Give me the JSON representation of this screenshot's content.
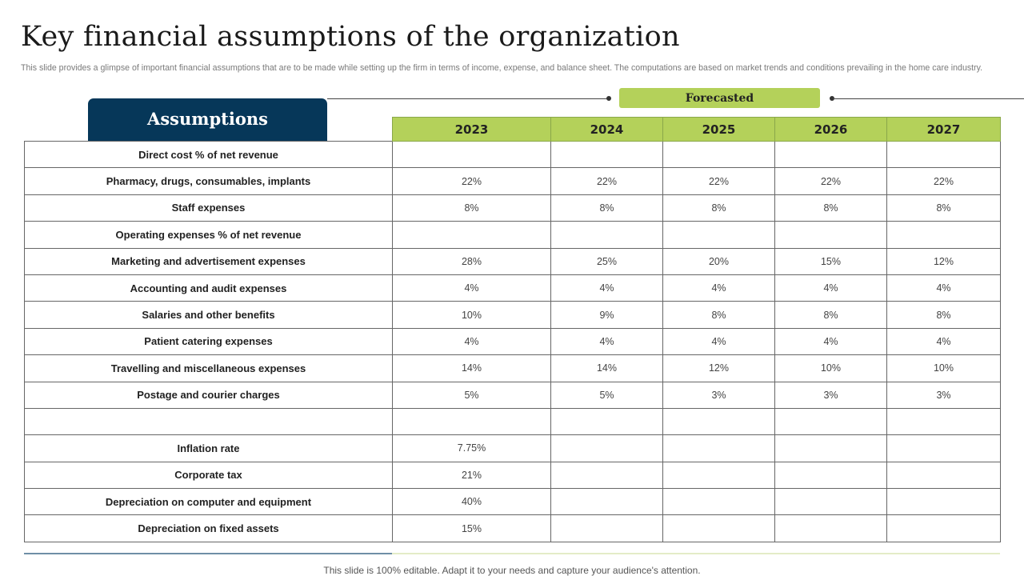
{
  "title": "Key financial assumptions of the organization",
  "subtitle": "This slide provides a glimpse of important financial assumptions that are to be made while setting up the firm in terms of income, expense, and balance sheet. The computations are based on market trends and conditions prevailing in the home care industry.",
  "assumptions_tab": "Assumptions",
  "forecast_label": "Forecasted",
  "years": [
    "2023",
    "2024",
    "2025",
    "2026",
    "2027"
  ],
  "rows": [
    {
      "label": "Direct cost % of net revenue",
      "values": [
        "",
        "",
        "",
        "",
        ""
      ]
    },
    {
      "label": "Pharmacy, drugs, consumables, implants",
      "values": [
        "22%",
        "22%",
        "22%",
        "22%",
        "22%"
      ]
    },
    {
      "label": "Staff expenses",
      "values": [
        "8%",
        "8%",
        "8%",
        "8%",
        "8%"
      ]
    },
    {
      "label": "Operating expenses % of net revenue",
      "values": [
        "",
        "",
        "",
        "",
        ""
      ]
    },
    {
      "label": "Marketing and advertisement expenses",
      "values": [
        "28%",
        "25%",
        "20%",
        "15%",
        "12%"
      ]
    },
    {
      "label": "Accounting and audit expenses",
      "values": [
        "4%",
        "4%",
        "4%",
        "4%",
        "4%"
      ]
    },
    {
      "label": "Salaries and other benefits",
      "values": [
        "10%",
        "9%",
        "8%",
        "8%",
        "8%"
      ]
    },
    {
      "label": "Patient catering expenses",
      "values": [
        "4%",
        "4%",
        "4%",
        "4%",
        "4%"
      ]
    },
    {
      "label": "Travelling and miscellaneous expenses",
      "values": [
        "14%",
        "14%",
        "12%",
        "10%",
        "10%"
      ]
    },
    {
      "label": "Postage and courier charges",
      "values": [
        "5%",
        "5%",
        "3%",
        "3%",
        "3%"
      ]
    },
    {
      "label": "",
      "values": [
        "",
        "",
        "",
        "",
        ""
      ]
    },
    {
      "label": "Inflation rate",
      "values": [
        "7.75%",
        "",
        "",
        "",
        ""
      ]
    },
    {
      "label": "Corporate tax",
      "values": [
        "21%",
        "",
        "",
        "",
        ""
      ]
    },
    {
      "label": "Depreciation on computer and equipment",
      "values": [
        "40%",
        "",
        "",
        "",
        ""
      ]
    },
    {
      "label": "Depreciation on fixed assets",
      "values": [
        "15%",
        "",
        "",
        "",
        ""
      ]
    }
  ],
  "footer": "This slide is 100% editable. Adapt it to your needs and capture your audience's attention.",
  "colors": {
    "header_green": "#b4d15a",
    "assumptions_navy": "#063759"
  }
}
